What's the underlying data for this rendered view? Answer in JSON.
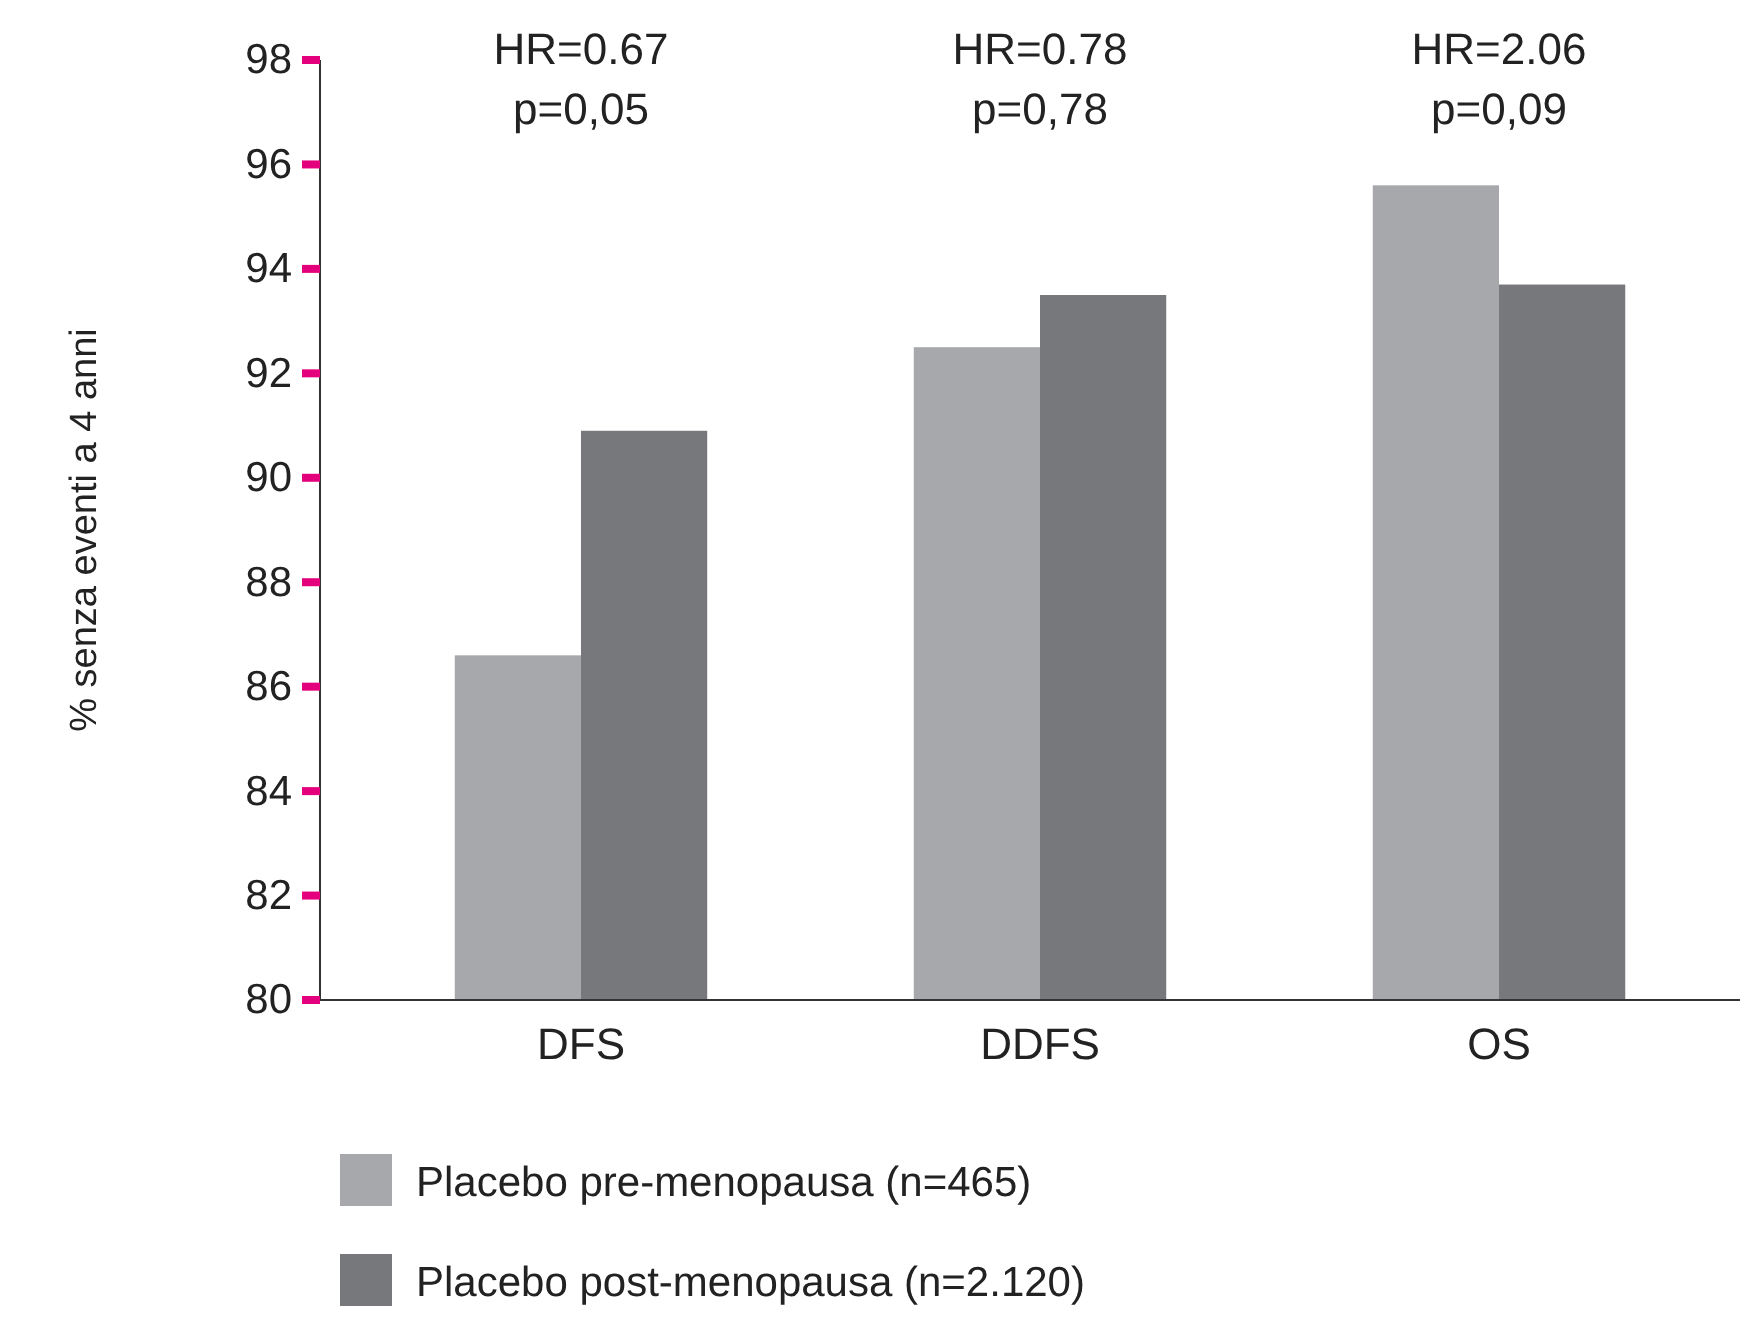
{
  "chart_data": {
    "type": "bar",
    "ylabel": "% senza eventi a 4 anni",
    "categories": [
      "DFS",
      "DDFS",
      "OS"
    ],
    "series": [
      {
        "name": "Placebo pre-menopausa (n=465)",
        "color": "#a7a8ac",
        "values": [
          86.6,
          92.5,
          95.6
        ]
      },
      {
        "name": "Placebo post-menopausa (n=2.120)",
        "color": "#77787c",
        "values": [
          90.9,
          93.5,
          93.7
        ]
      }
    ],
    "ylim": [
      80,
      98
    ],
    "yticks": [
      80,
      82,
      84,
      86,
      88,
      90,
      92,
      94,
      96,
      98
    ],
    "grid": false,
    "legend": "bottom",
    "annotations": [
      "HR=0.67\np=0,05",
      "HR=0.78\np=0,78",
      "HR=2.06\np=0,09"
    ]
  }
}
